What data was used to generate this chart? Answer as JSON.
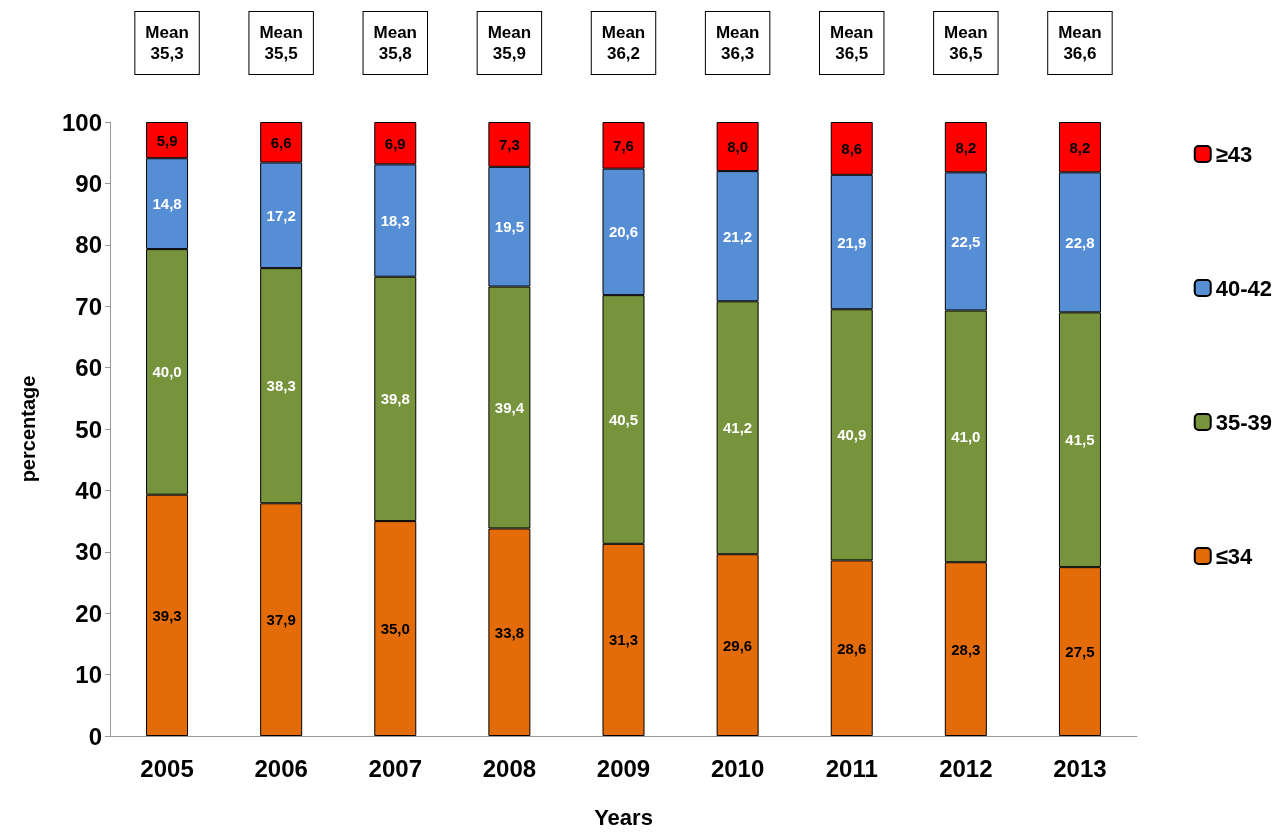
{
  "chart_data": {
    "type": "bar",
    "stacked": true,
    "xlabel": "Years",
    "ylabel": "percentage",
    "categories": [
      "2005",
      "2006",
      "2007",
      "2008",
      "2009",
      "2010",
      "2011",
      "2012",
      "2013"
    ],
    "series": [
      {
        "name": "≤34",
        "color": "#e36c09",
        "values": [
          39.3,
          37.9,
          35.0,
          33.8,
          31.3,
          29.6,
          28.6,
          28.3,
          27.5
        ],
        "value_labels": [
          "39,3",
          "37,9",
          "35,0",
          "33,8",
          "31,3",
          "29,6",
          "28,6",
          "28,3",
          "27,5"
        ]
      },
      {
        "name": "35-39",
        "color": "#77933c",
        "values": [
          40.0,
          38.3,
          39.8,
          39.4,
          40.5,
          41.2,
          40.9,
          41.0,
          41.5
        ],
        "value_labels": [
          "40,0",
          "38,3",
          "39,8",
          "39,4",
          "40,5",
          "41,2",
          "40,9",
          "41,0",
          "41,5"
        ]
      },
      {
        "name": "40-42",
        "color": "#558ed5",
        "values": [
          14.8,
          17.2,
          18.3,
          19.5,
          20.6,
          21.2,
          21.9,
          22.5,
          22.8
        ],
        "value_labels": [
          "14,8",
          "17,2",
          "18,3",
          "19,5",
          "20,6",
          "21,2",
          "21,9",
          "22,5",
          "22,8"
        ]
      },
      {
        "name": "≥43",
        "color": "#ff0000",
        "values": [
          5.9,
          6.6,
          6.9,
          7.3,
          7.6,
          8.0,
          8.6,
          8.2,
          8.2
        ],
        "value_labels": [
          "5,9",
          "6,6",
          "6,9",
          "7,3",
          "7,6",
          "8,0",
          "8,6",
          "8,2",
          "8,2"
        ]
      }
    ],
    "ylim": [
      0,
      100
    ],
    "yticks": [
      0,
      10,
      20,
      30,
      40,
      50,
      60,
      70,
      80,
      90,
      100
    ],
    "grid": false,
    "legend": "right",
    "annotations": [
      "Mean\n35,3",
      "Mean\n35,5",
      "Mean\n35,8",
      "Mean\n35,9",
      "Mean\n36,2",
      "Mean\n36,3",
      "Mean\n36,5",
      "Mean\n36,5",
      "Mean\n36,6"
    ]
  }
}
